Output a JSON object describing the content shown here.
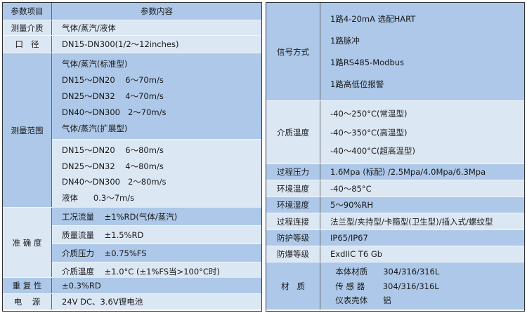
{
  "left": {
    "header": {
      "label": "参数项目",
      "content": "参数内容"
    },
    "rows": [
      {
        "label": "测量介质",
        "shade": "light",
        "subs": [
          {
            "shade": "light",
            "lines": [
              "气体/蒸汽/液体"
            ]
          }
        ]
      },
      {
        "label": "口   径",
        "shade": "light",
        "subs": [
          {
            "shade": "light",
            "lines": [
              "DN15-DN300(1/2～12inches)"
            ]
          }
        ]
      },
      {
        "label": "测量范围",
        "shade": "dark",
        "subs": [
          {
            "shade": "dark",
            "lines": [
              "气体/蒸汽(标准型)",
              "DN15～DN20    6～70m/s",
              "DN25～DN32    4～70m/s",
              "DN40～DN300   2～70m/s",
              "气体/蒸汽(扩展型)"
            ]
          },
          {
            "shade": "light",
            "lines": [
              "DN15～DN20    6～80m/s",
              "DN25～DN32    4～80m/s",
              "DN40～DN300   2～80m/s",
              "液体      0.3～7m/s"
            ]
          }
        ]
      },
      {
        "label": "准 确 度",
        "shade": "light",
        "subs": [
          {
            "shade": "dark",
            "lines": [
              "工况流量    ±1%RD(气体/蒸汽)"
            ]
          },
          {
            "shade": "light",
            "lines": [
              "质量流量    ±1.5%RD"
            ]
          },
          {
            "shade": "dark",
            "lines": [
              "介质压力    ±0.75%FS"
            ]
          },
          {
            "shade": "light",
            "lines": [
              "介质温度    ±1.0°C (±1%FS当>100°C时)"
            ]
          }
        ]
      },
      {
        "label": "重 复 性",
        "shade": "dark",
        "subs": [
          {
            "shade": "dark",
            "lines": [
              "±0.3%RD"
            ]
          }
        ]
      },
      {
        "label": "电    源",
        "shade": "light",
        "subs": [
          {
            "shade": "light",
            "lines": [
              "24V DC、3.6V锂电池"
            ]
          }
        ]
      }
    ]
  },
  "right": {
    "rows": [
      {
        "label": "信号方式",
        "shade": "dark",
        "subs": [
          {
            "shade": "dark",
            "lines": [
              "1路4-20mA 选配HART",
              "1路脉冲",
              "1路RS485-Modbus",
              "1路高低位报警"
            ]
          }
        ]
      },
      {
        "label": "介质温度",
        "shade": "light",
        "subs": [
          {
            "shade": "light",
            "lines": [
              "-40～250°C(常温型)",
              "-40～350°C(高温型)",
              "-40～400°C(超高温型)"
            ]
          }
        ]
      },
      {
        "label": "过程压力",
        "shade": "dark",
        "subs": [
          {
            "shade": "dark",
            "lines": [
              "1.6Mpa (标配) /2.5Mpa/4.0Mpa/6.3Mpa"
            ]
          }
        ]
      },
      {
        "label": "环境温度",
        "shade": "light",
        "subs": [
          {
            "shade": "light",
            "lines": [
              "-40～85°C"
            ]
          }
        ]
      },
      {
        "label": "环境湿度",
        "shade": "dark",
        "subs": [
          {
            "shade": "dark",
            "lines": [
              "5～90%RH"
            ]
          }
        ]
      },
      {
        "label": "过程连接",
        "shade": "light",
        "subs": [
          {
            "shade": "light",
            "lines": [
              "法兰型/夹持型/卡箍型(卫生型)/插入式/螺纹型"
            ]
          }
        ]
      },
      {
        "label": "防护等级",
        "shade": "dark",
        "subs": [
          {
            "shade": "dark",
            "lines": [
              "IP65/IP67"
            ]
          }
        ]
      },
      {
        "label": "防爆等级",
        "shade": "light",
        "subs": [
          {
            "shade": "light",
            "lines": [
              "ExdIIC T6 Gb"
            ]
          }
        ]
      },
      {
        "label": "材   质",
        "shade": "dark",
        "subs": [
          {
            "shade": "dark",
            "lines": [
              "  本体材质      304/316/316L",
              "  传 感 器       304/316/316L",
              "  仪表壳体      铝"
            ]
          }
        ]
      }
    ]
  }
}
